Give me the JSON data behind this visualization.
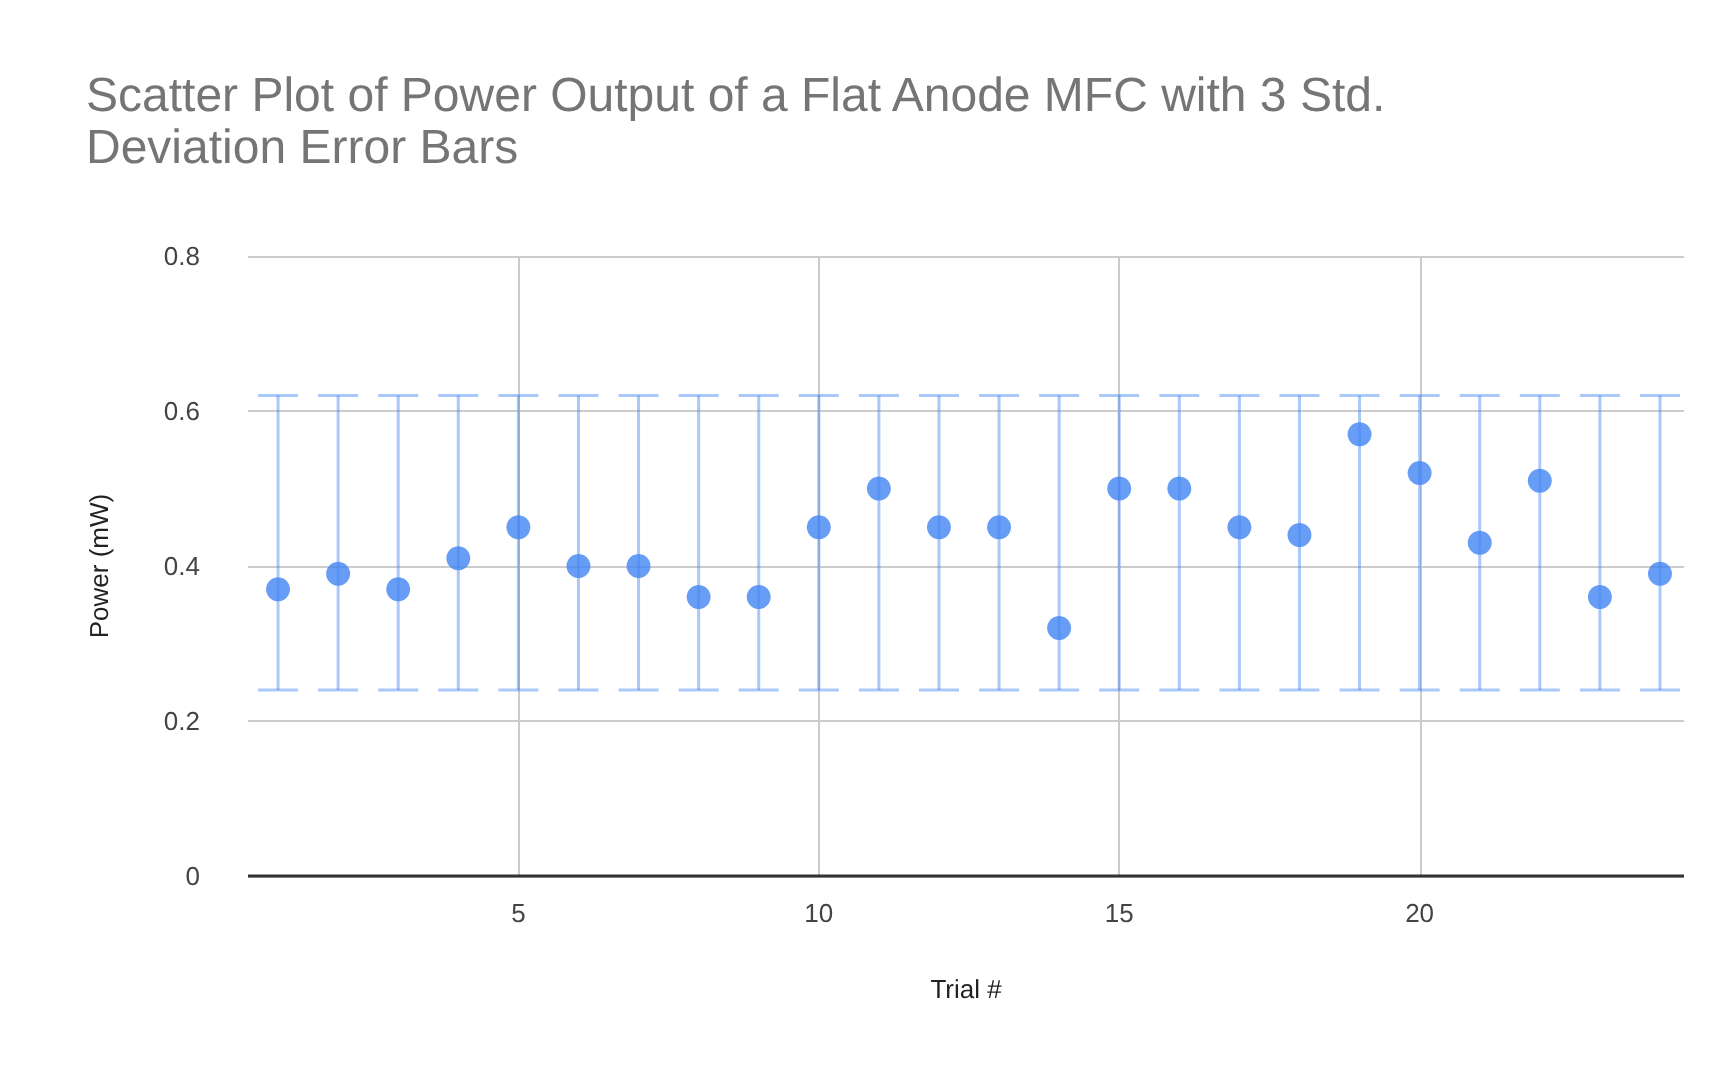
{
  "chart_data": {
    "type": "scatter",
    "title": "Scatter Plot of Power Output of a Flat Anode MFC with 3 Std.\nDeviation Error Bars",
    "xlabel": "Trial #",
    "ylabel": "Power (mW)",
    "x": [
      1,
      2,
      3,
      4,
      5,
      6,
      7,
      8,
      9,
      10,
      11,
      12,
      13,
      14,
      15,
      16,
      17,
      18,
      19,
      20,
      21,
      22,
      23,
      24
    ],
    "series": [
      {
        "color": "#4285f4",
        "values": [
          0.37,
          0.39,
          0.37,
          0.41,
          0.45,
          0.4,
          0.4,
          0.36,
          0.36,
          0.45,
          0.5,
          0.45,
          0.45,
          0.32,
          0.5,
          0.5,
          0.45,
          0.44,
          0.57,
          0.52,
          0.43,
          0.51,
          0.36,
          0.39
        ],
        "errors": [
          [
            0.24,
            0.62
          ],
          [
            0.24,
            0.62
          ],
          [
            0.24,
            0.62
          ],
          [
            0.24,
            0.62
          ],
          [
            0.24,
            0.62
          ],
          [
            0.24,
            0.62
          ],
          [
            0.24,
            0.62
          ],
          [
            0.24,
            0.62
          ],
          [
            0.24,
            0.62
          ],
          [
            0.24,
            0.62
          ],
          [
            0.24,
            0.62
          ],
          [
            0.24,
            0.62
          ],
          [
            0.24,
            0.62
          ],
          [
            0.24,
            0.62
          ],
          [
            0.24,
            0.62
          ],
          [
            0.24,
            0.62
          ],
          [
            0.24,
            0.62
          ],
          [
            0.24,
            0.62
          ],
          [
            0.24,
            0.62
          ],
          [
            0.24,
            0.62
          ],
          [
            0.24,
            0.62
          ],
          [
            0.24,
            0.62
          ],
          [
            0.24,
            0.62
          ],
          [
            0.24,
            0.62
          ]
        ]
      }
    ],
    "xlim": [
      0.5,
      24.4
    ],
    "xticks": [
      5,
      10,
      15,
      20
    ],
    "ylim": [
      0,
      0.8
    ],
    "yticks": [
      0,
      0.2,
      0.4,
      0.6,
      0.8
    ],
    "grid": true,
    "marker": "circle"
  }
}
